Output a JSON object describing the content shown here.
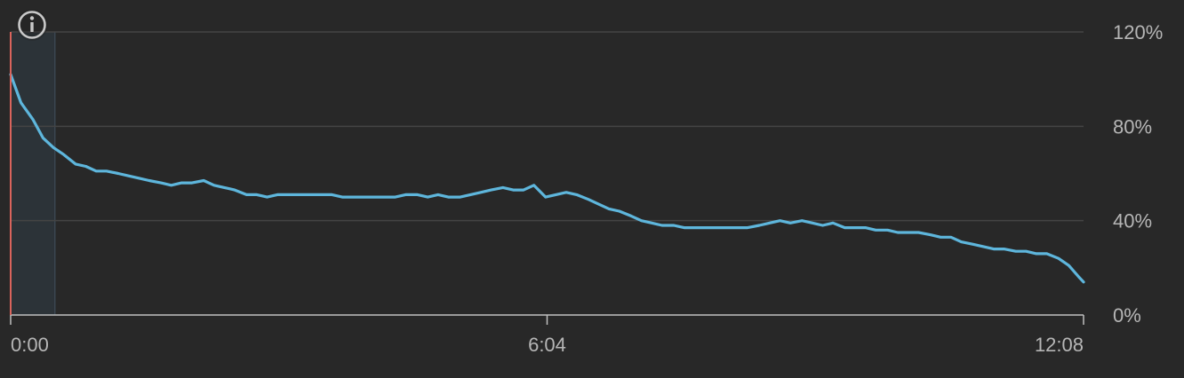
{
  "chart_data": {
    "type": "line",
    "title": "",
    "xlabel": "",
    "ylabel": "",
    "x_unit": "minutes:seconds",
    "xlim": [
      0,
      728
    ],
    "ylim": [
      0,
      120
    ],
    "x_ticks": [
      "0:00",
      "6:04",
      "12:08"
    ],
    "y_ticks": [
      "0%",
      "40%",
      "80%",
      "120%"
    ],
    "grid": "horizontal",
    "highlight_window": {
      "from_sec": 0,
      "to_sec": 30
    },
    "series": [
      {
        "color": "#5eb6dc",
        "points": [
          [
            0,
            102
          ],
          [
            7,
            90
          ],
          [
            15,
            83
          ],
          [
            22,
            75
          ],
          [
            29,
            71
          ],
          [
            36,
            68
          ],
          [
            44,
            64
          ],
          [
            51,
            63
          ],
          [
            58,
            61
          ],
          [
            65,
            61
          ],
          [
            73,
            60
          ],
          [
            80,
            59
          ],
          [
            87,
            58
          ],
          [
            94,
            57
          ],
          [
            102,
            56
          ],
          [
            109,
            55
          ],
          [
            116,
            56
          ],
          [
            123,
            56
          ],
          [
            131,
            57
          ],
          [
            138,
            55
          ],
          [
            145,
            54
          ],
          [
            152,
            53
          ],
          [
            160,
            51
          ],
          [
            167,
            51
          ],
          [
            174,
            50
          ],
          [
            181,
            51
          ],
          [
            189,
            51
          ],
          [
            196,
            51
          ],
          [
            203,
            51
          ],
          [
            210,
            51
          ],
          [
            218,
            51
          ],
          [
            225,
            50
          ],
          [
            232,
            50
          ],
          [
            239,
            50
          ],
          [
            247,
            50
          ],
          [
            254,
            50
          ],
          [
            261,
            50
          ],
          [
            268,
            51
          ],
          [
            276,
            51
          ],
          [
            283,
            50
          ],
          [
            290,
            51
          ],
          [
            297,
            50
          ],
          [
            305,
            50
          ],
          [
            312,
            51
          ],
          [
            319,
            52
          ],
          [
            326,
            53
          ],
          [
            334,
            54
          ],
          [
            341,
            53
          ],
          [
            348,
            53
          ],
          [
            355,
            55
          ],
          [
            363,
            50
          ],
          [
            370,
            51
          ],
          [
            377,
            52
          ],
          [
            384,
            51
          ],
          [
            392,
            49
          ],
          [
            399,
            47
          ],
          [
            406,
            45
          ],
          [
            413,
            44
          ],
          [
            421,
            42
          ],
          [
            428,
            40
          ],
          [
            435,
            39
          ],
          [
            442,
            38
          ],
          [
            450,
            38
          ],
          [
            457,
            37
          ],
          [
            464,
            37
          ],
          [
            471,
            37
          ],
          [
            479,
            37
          ],
          [
            486,
            37
          ],
          [
            493,
            37
          ],
          [
            500,
            37
          ],
          [
            508,
            38
          ],
          [
            515,
            39
          ],
          [
            522,
            40
          ],
          [
            529,
            39
          ],
          [
            537,
            40
          ],
          [
            544,
            39
          ],
          [
            551,
            38
          ],
          [
            558,
            39
          ],
          [
            566,
            37
          ],
          [
            573,
            37
          ],
          [
            580,
            37
          ],
          [
            587,
            36
          ],
          [
            595,
            36
          ],
          [
            602,
            35
          ],
          [
            609,
            35
          ],
          [
            616,
            35
          ],
          [
            624,
            34
          ],
          [
            631,
            33
          ],
          [
            638,
            33
          ],
          [
            645,
            31
          ],
          [
            653,
            30
          ],
          [
            660,
            29
          ],
          [
            667,
            28
          ],
          [
            674,
            28
          ],
          [
            682,
            27
          ],
          [
            689,
            27
          ],
          [
            696,
            26
          ],
          [
            703,
            26
          ],
          [
            711,
            24
          ],
          [
            718,
            21
          ],
          [
            725,
            16
          ],
          [
            728,
            14
          ]
        ]
      }
    ]
  },
  "colors": {
    "background": "#282828",
    "line": "#5eb6dc",
    "grid": "#444444",
    "axis": "#bfbfbf",
    "tick_text": "#b6b6b6",
    "cursor_line": "#d9645c",
    "highlight_fill": "#2c3338",
    "highlight_border": "#3a4650"
  },
  "icons": {
    "info": "info-circle-icon"
  }
}
